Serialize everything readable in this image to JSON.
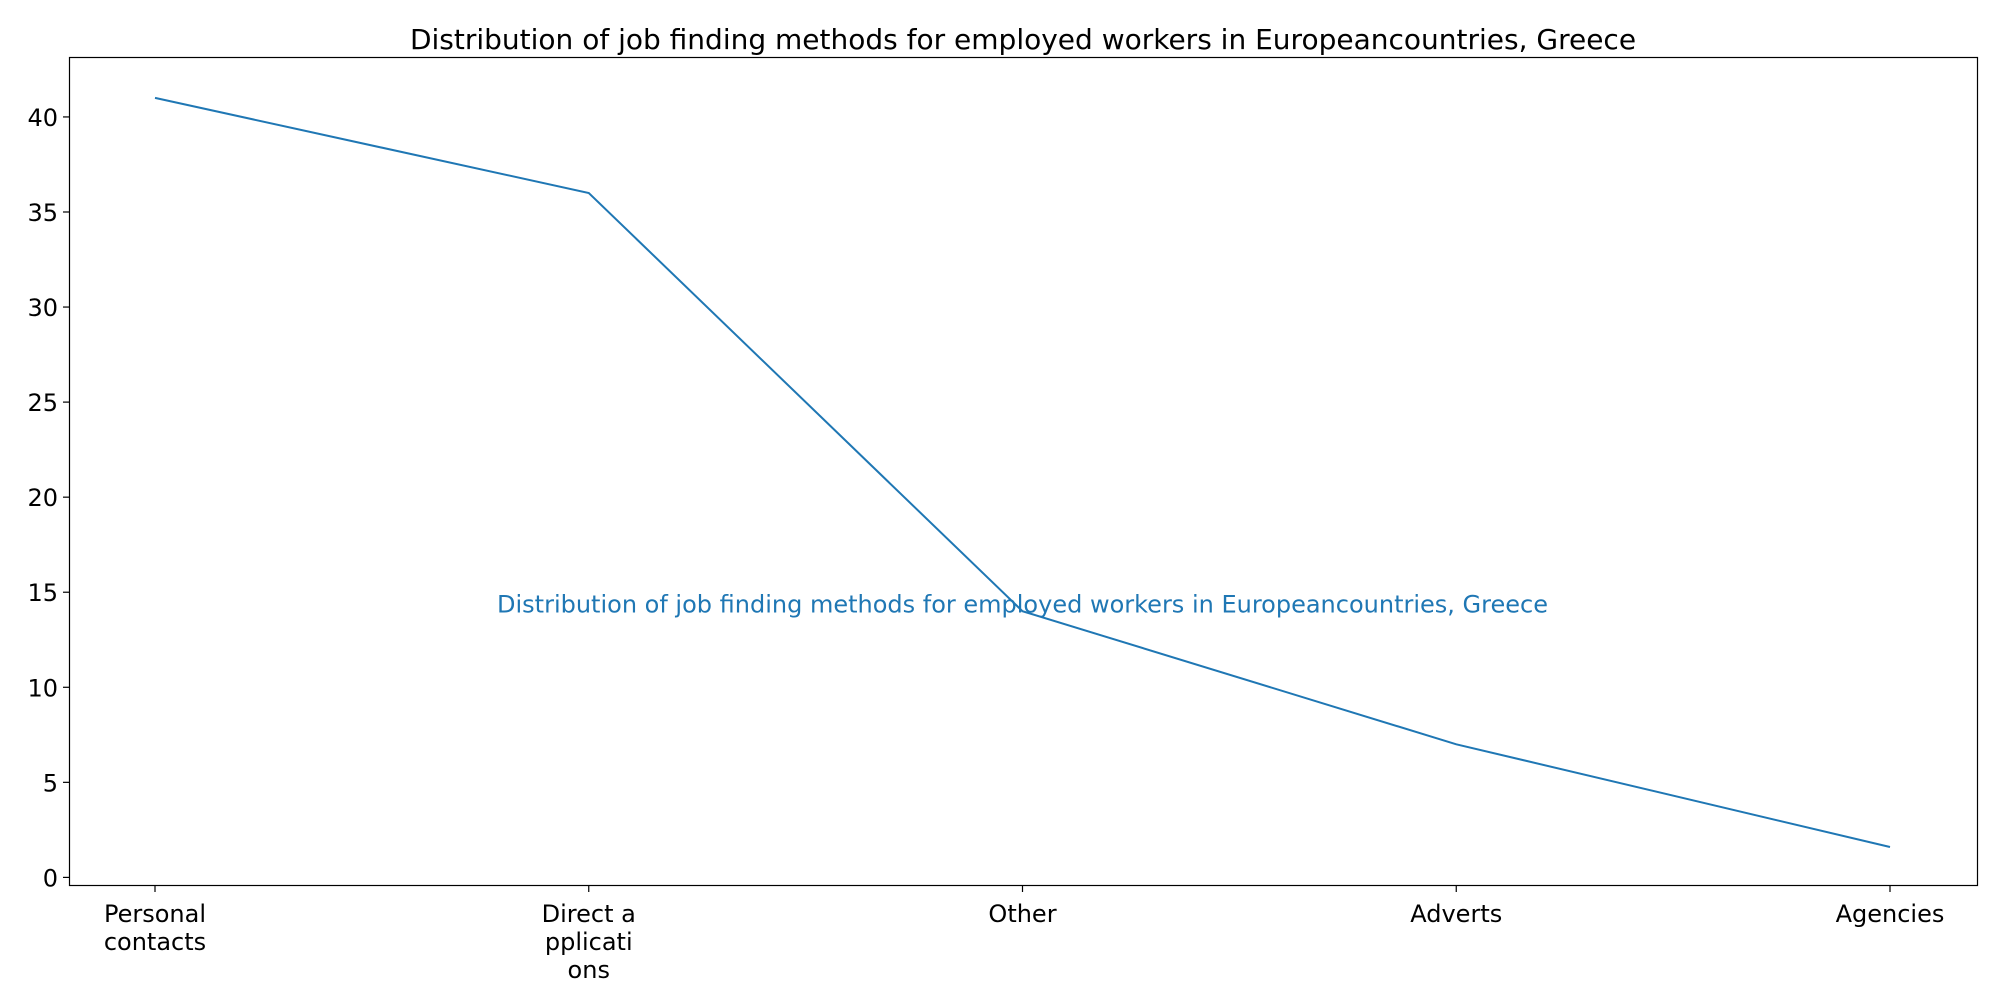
{
  "chart_data": {
    "type": "line",
    "title": "Distribution of job finding methods for employed workers in Europeancountries, Greece",
    "xlabel": "",
    "ylabel": "",
    "categories": [
      "Personal contacts",
      "Direct applications",
      "Other",
      "Adverts",
      "Agencies"
    ],
    "category_tick_lines": [
      [
        "Personal",
        "contacts"
      ],
      [
        "Direct a",
        "pplicati",
        "ons"
      ],
      [
        "Other"
      ],
      [
        "Adverts"
      ],
      [
        "Agencies"
      ]
    ],
    "series": [
      {
        "values": [
          41,
          36,
          14,
          7,
          1.6
        ]
      }
    ],
    "ylim": [
      -0.4,
      43.1
    ],
    "yticks": [
      0,
      5,
      10,
      15,
      20,
      25,
      30,
      35,
      40
    ],
    "grid": false,
    "annotation": {
      "text": "Distribution of job finding methods for employed workers in Europeancountries, Greece",
      "x_category": "Other",
      "y": 14.4
    },
    "colors": {
      "line": "#1f77b4",
      "annotation": "#1f77b4",
      "axes": "#000000"
    }
  }
}
